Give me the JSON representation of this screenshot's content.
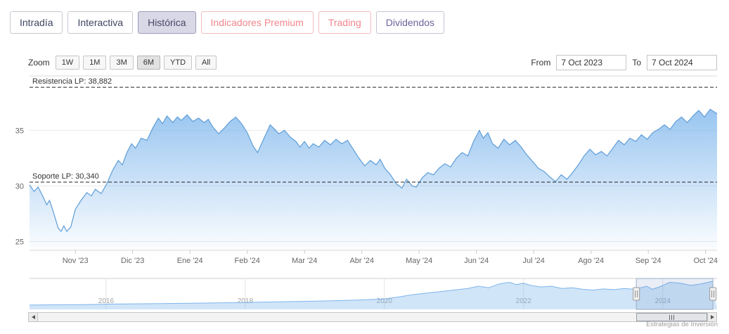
{
  "tabs": [
    {
      "label": "Intradía"
    },
    {
      "label": "Interactiva"
    },
    {
      "label": "Histórica"
    },
    {
      "label": "Indicadores Premium"
    },
    {
      "label": "Trading"
    },
    {
      "label": "Dividendos"
    }
  ],
  "toolbar": {
    "zoom_label": "Zoom",
    "buttons": [
      "1W",
      "1M",
      "3M",
      "6M",
      "YTD",
      "All"
    ],
    "selected": "6M",
    "from_label": "From",
    "to_label": "To",
    "from_value": "7 Oct 2023",
    "to_value": "7 Oct 2024"
  },
  "colors": {
    "line": "#5f9ed7",
    "fill": "#7cb5ec",
    "accent_coral": "#f2868d",
    "accent_purple": "#70639b",
    "active_tab_bg": "#d9d8e6"
  },
  "chart_data": {
    "type": "area",
    "title": "",
    "main": {
      "xlabel": "",
      "ylabel": "",
      "ylim": [
        24.2,
        39.9
      ],
      "y_ticks": [
        25,
        30,
        35
      ],
      "x_labels": [
        "Nov '23",
        "Dic '23",
        "Ene '24",
        "Feb '24",
        "Mar '24",
        "Abr '24",
        "May '24",
        "Jun '24",
        "Jul '24",
        "Ago '24",
        "Sep '24",
        "Oct '24"
      ],
      "annotations": [
        {
          "label": "Resistencia LP: 38,882",
          "value": 38.882
        },
        {
          "label": "Soporte LP: 30,340",
          "value": 30.34
        }
      ],
      "series": [
        [
          0,
          30.1
        ],
        [
          0.08,
          29.5
        ],
        [
          0.15,
          29.9
        ],
        [
          0.22,
          29.2
        ],
        [
          0.3,
          28.3
        ],
        [
          0.35,
          28.7
        ],
        [
          0.42,
          27.6
        ],
        [
          0.5,
          26.2
        ],
        [
          0.55,
          25.9
        ],
        [
          0.6,
          26.4
        ],
        [
          0.65,
          25.9
        ],
        [
          0.72,
          26.3
        ],
        [
          0.8,
          27.9
        ],
        [
          0.9,
          28.7
        ],
        [
          1,
          29.4
        ],
        [
          1.08,
          29.1
        ],
        [
          1.15,
          29.7
        ],
        [
          1.25,
          29.3
        ],
        [
          1.35,
          30.2
        ],
        [
          1.45,
          31.4
        ],
        [
          1.55,
          32.3
        ],
        [
          1.62,
          31.9
        ],
        [
          1.7,
          33
        ],
        [
          1.78,
          33.8
        ],
        [
          1.85,
          33.4
        ],
        [
          1.95,
          34.3
        ],
        [
          2.05,
          34.1
        ],
        [
          2.15,
          35.2
        ],
        [
          2.25,
          36.1
        ],
        [
          2.32,
          35.6
        ],
        [
          2.4,
          36.3
        ],
        [
          2.5,
          35.7
        ],
        [
          2.58,
          36.2
        ],
        [
          2.65,
          35.9
        ],
        [
          2.75,
          36.4
        ],
        [
          2.85,
          35.8
        ],
        [
          2.95,
          36.1
        ],
        [
          3.05,
          35.7
        ],
        [
          3.12,
          36
        ],
        [
          3.2,
          35.3
        ],
        [
          3.3,
          34.7
        ],
        [
          3.4,
          35.2
        ],
        [
          3.5,
          35.8
        ],
        [
          3.6,
          36.2
        ],
        [
          3.7,
          35.6
        ],
        [
          3.8,
          34.8
        ],
        [
          3.9,
          33.6
        ],
        [
          3.98,
          33
        ],
        [
          4.05,
          33.8
        ],
        [
          4.12,
          34.6
        ],
        [
          4.2,
          35.5
        ],
        [
          4.28,
          35.1
        ],
        [
          4.35,
          34.7
        ],
        [
          4.45,
          35
        ],
        [
          4.55,
          34.4
        ],
        [
          4.65,
          34
        ],
        [
          4.72,
          33.5
        ],
        [
          4.8,
          34
        ],
        [
          4.88,
          33.4
        ],
        [
          4.95,
          33.8
        ],
        [
          5.05,
          33.5
        ],
        [
          5.15,
          34.1
        ],
        [
          5.25,
          33.7
        ],
        [
          5.35,
          34.2
        ],
        [
          5.45,
          33.8
        ],
        [
          5.55,
          34.1
        ],
        [
          5.65,
          33.3
        ],
        [
          5.75,
          32.5
        ],
        [
          5.85,
          31.8
        ],
        [
          5.95,
          32.3
        ],
        [
          6.05,
          31.9
        ],
        [
          6.12,
          32.4
        ],
        [
          6.2,
          31.6
        ],
        [
          6.3,
          31
        ],
        [
          6.4,
          30.2
        ],
        [
          6.5,
          29.8
        ],
        [
          6.58,
          30.6
        ],
        [
          6.68,
          30
        ],
        [
          6.75,
          29.9
        ],
        [
          6.85,
          30.7
        ],
        [
          6.95,
          31.2
        ],
        [
          7.05,
          31
        ],
        [
          7.15,
          31.6
        ],
        [
          7.25,
          32
        ],
        [
          7.35,
          31.7
        ],
        [
          7.45,
          32.5
        ],
        [
          7.55,
          33
        ],
        [
          7.65,
          32.7
        ],
        [
          7.75,
          34
        ],
        [
          7.85,
          35
        ],
        [
          7.92,
          34.3
        ],
        [
          8,
          34.8
        ],
        [
          8.08,
          33.8
        ],
        [
          8.18,
          33.4
        ],
        [
          8.28,
          34.2
        ],
        [
          8.38,
          33.7
        ],
        [
          8.48,
          34.1
        ],
        [
          8.58,
          33.5
        ],
        [
          8.68,
          32.8
        ],
        [
          8.78,
          32.2
        ],
        [
          8.88,
          31.6
        ],
        [
          8.98,
          31.3
        ],
        [
          9.08,
          30.8
        ],
        [
          9.18,
          30.4
        ],
        [
          9.28,
          31
        ],
        [
          9.38,
          30.6
        ],
        [
          9.48,
          31.2
        ],
        [
          9.58,
          31.9
        ],
        [
          9.68,
          32.7
        ],
        [
          9.78,
          33.3
        ],
        [
          9.88,
          32.8
        ],
        [
          9.98,
          33.1
        ],
        [
          10.08,
          32.7
        ],
        [
          10.18,
          33.4
        ],
        [
          10.28,
          34.1
        ],
        [
          10.38,
          33.7
        ],
        [
          10.48,
          34.3
        ],
        [
          10.58,
          34
        ],
        [
          10.68,
          34.6
        ],
        [
          10.78,
          34.2
        ],
        [
          10.88,
          34.8
        ],
        [
          10.98,
          35.1
        ],
        [
          11.08,
          35.5
        ],
        [
          11.18,
          35.1
        ],
        [
          11.28,
          35.8
        ],
        [
          11.38,
          36.2
        ],
        [
          11.48,
          35.7
        ],
        [
          11.58,
          36.3
        ],
        [
          11.68,
          36.8
        ],
        [
          11.78,
          36.2
        ],
        [
          11.88,
          36.9
        ],
        [
          12,
          36.5
        ]
      ]
    },
    "navigator": {
      "x_labels": [
        "2016",
        "2018",
        "2020",
        "2022",
        "2024"
      ],
      "x_ticks": [
        2016,
        2018,
        2020,
        2022,
        2024
      ],
      "xlim": [
        2014.9,
        2024.78
      ],
      "ylim": [
        0,
        40
      ],
      "selection": [
        2023.62,
        2024.72
      ],
      "series": [
        [
          2014.9,
          5.5
        ],
        [
          2015.3,
          6
        ],
        [
          2015.7,
          6.2
        ],
        [
          2016,
          6.8
        ],
        [
          2016.4,
          7.2
        ],
        [
          2016.8,
          7.5
        ],
        [
          2017.2,
          8
        ],
        [
          2017.6,
          8.4
        ],
        [
          2018,
          9
        ],
        [
          2018.4,
          9.6
        ],
        [
          2018.8,
          10.4
        ],
        [
          2019.2,
          11
        ],
        [
          2019.6,
          12
        ],
        [
          2020,
          13.5
        ],
        [
          2020.2,
          16
        ],
        [
          2020.4,
          19
        ],
        [
          2020.6,
          21
        ],
        [
          2020.8,
          23
        ],
        [
          2021,
          25
        ],
        [
          2021.2,
          27
        ],
        [
          2021.35,
          30
        ],
        [
          2021.5,
          28
        ],
        [
          2021.65,
          33
        ],
        [
          2021.8,
          35
        ],
        [
          2021.9,
          32
        ],
        [
          2022,
          34
        ],
        [
          2022.1,
          31
        ],
        [
          2022.25,
          29
        ],
        [
          2022.4,
          30
        ],
        [
          2022.55,
          27
        ],
        [
          2022.7,
          28
        ],
        [
          2022.85,
          26
        ],
        [
          2023,
          25
        ],
        [
          2023.15,
          26.5
        ],
        [
          2023.3,
          25.5
        ],
        [
          2023.45,
          27
        ],
        [
          2023.6,
          26
        ],
        [
          2023.77,
          30
        ],
        [
          2023.85,
          26
        ],
        [
          2023.95,
          29
        ],
        [
          2024.1,
          35
        ],
        [
          2024.25,
          34
        ],
        [
          2024.4,
          31
        ],
        [
          2024.55,
          33
        ],
        [
          2024.65,
          35
        ],
        [
          2024.72,
          36.5
        ]
      ]
    }
  },
  "attribution": "Estrategias de Inversión"
}
